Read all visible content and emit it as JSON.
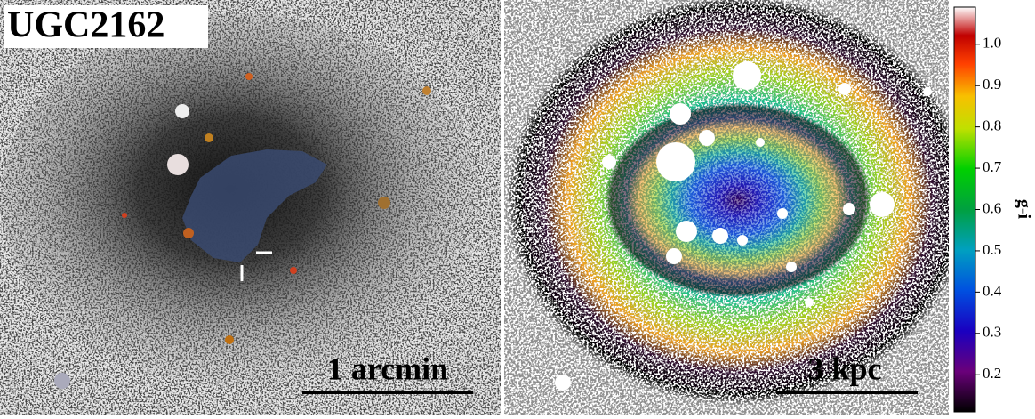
{
  "title": "UGC2162",
  "left_panel": {
    "scale_label": "1 arcmin"
  },
  "right_panel": {
    "scale_label": "3 kpc"
  },
  "colorbar": {
    "label": "g-i",
    "lim": [
      0.11,
      1.09
    ],
    "ticks": [
      0.2,
      0.3,
      0.4,
      0.5,
      0.6,
      0.7,
      0.8,
      0.9,
      {
        "value": 1,
        "label": "1.0"
      }
    ]
  }
}
